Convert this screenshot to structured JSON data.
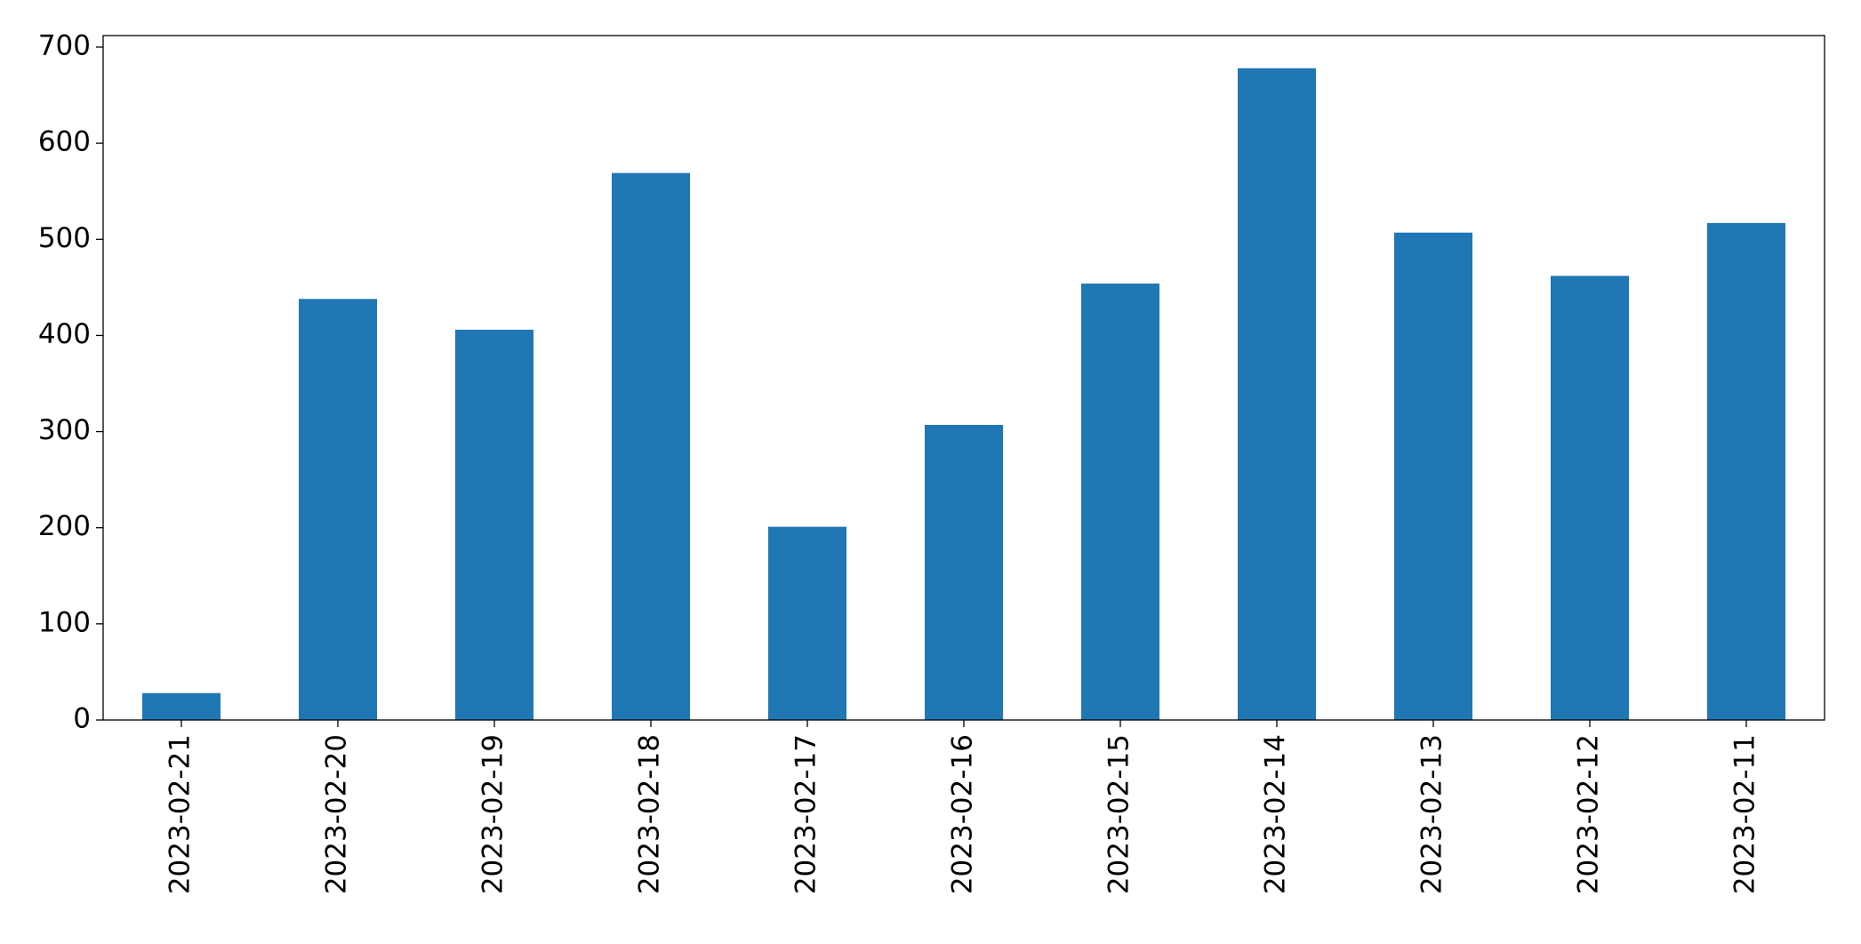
{
  "chart_data": {
    "type": "bar",
    "categories": [
      "2023-02-21",
      "2023-02-20",
      "2023-02-19",
      "2023-02-18",
      "2023-02-17",
      "2023-02-16",
      "2023-02-15",
      "2023-02-14",
      "2023-02-13",
      "2023-02-12",
      "2023-02-11"
    ],
    "values": [
      28,
      438,
      406,
      569,
      201,
      307,
      454,
      678,
      507,
      462,
      517
    ],
    "color": "#1f77b4",
    "ylim": [
      0,
      712
    ],
    "yticks": [
      0,
      100,
      200,
      300,
      400,
      500,
      600,
      700
    ],
    "grid": false
  }
}
